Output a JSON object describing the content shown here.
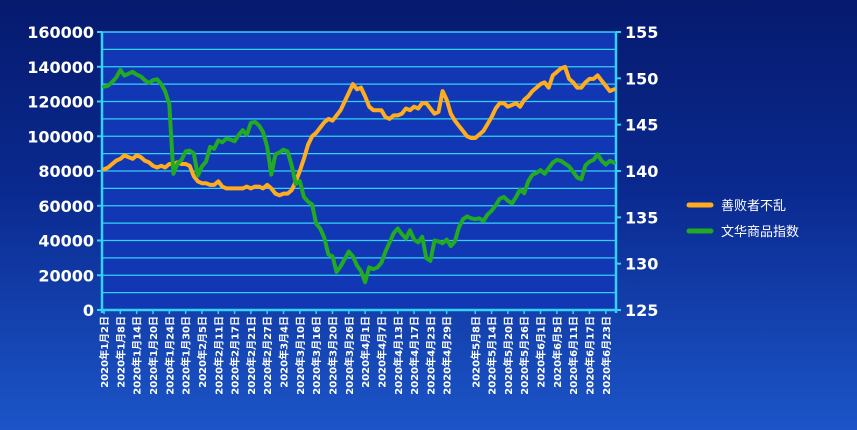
{
  "chart_data": {
    "type": "line",
    "title": "",
    "xlabel": "",
    "ylabel_left": "",
    "ylabel_right": "",
    "y_left": {
      "range": [
        0,
        160000
      ],
      "ticks": [
        0,
        20000,
        40000,
        60000,
        80000,
        100000,
        120000,
        140000,
        160000
      ]
    },
    "y_right": {
      "range": [
        125,
        155
      ],
      "ticks": [
        125,
        130,
        135,
        140,
        145,
        150,
        155
      ]
    },
    "grid": true,
    "legend_position": "right",
    "x": [
      "2020年1月2日",
      "2020年1月3日",
      "2020年1月6日",
      "2020年1月7日",
      "2020年1月8日",
      "2020年1月9日",
      "2020年1月10日",
      "2020年1月13日",
      "2020年1月14日",
      "2020年1月15日",
      "2020年1月16日",
      "2020年1月17日",
      "2020年1月20日",
      "2020年1月21日",
      "2020年1月22日",
      "2020年1月23日",
      "2020年1月24日",
      "2020年1月27日",
      "2020年1月28日",
      "2020年1月29日",
      "2020年1月30日",
      "2020年1月31日",
      "2020年2月3日",
      "2020年2月4日",
      "2020年2月5日",
      "2020年2月6日",
      "2020年2月7日",
      "2020年2月10日",
      "2020年2月11日",
      "2020年2月12日",
      "2020年2月13日",
      "2020年2月14日",
      "2020年2月17日",
      "2020年2月18日",
      "2020年2月19日",
      "2020年2月20日",
      "2020年2月21日",
      "2020年2月24日",
      "2020年2月25日",
      "2020年2月26日",
      "2020年2月27日",
      "2020年2月28日",
      "2020年3月2日",
      "2020年3月3日",
      "2020年3月4日",
      "2020年3月5日",
      "2020年3月6日",
      "2020年3月9日",
      "2020年3月10日",
      "2020年3月11日",
      "2020年3月12日",
      "2020年3月13日",
      "2020年3月16日",
      "2020年3月17日",
      "2020年3月18日",
      "2020年3月19日",
      "2020年3月20日",
      "2020年3月23日",
      "2020年3月24日",
      "2020年3月25日",
      "2020年3月26日",
      "2020年3月27日",
      "2020年3月30日",
      "2020年3月31日",
      "2020年4月1日",
      "2020年4月2日",
      "2020年4月3日",
      "2020年4月6日",
      "2020年4月7日",
      "2020年4月8日",
      "2020年4月9日",
      "2020年4月10日",
      "2020年4月13日",
      "2020年4月14日",
      "2020年4月15日",
      "2020年4月16日",
      "2020年4月17日",
      "2020年4月20日",
      "2020年4月21日",
      "2020年4月22日",
      "2020年4月23日",
      "2020年4月24日",
      "2020年4月27日",
      "2020年4月28日",
      "2020年4月29日",
      "2020年4月30日",
      "2020年5月1日",
      "2020年5月4日",
      "2020年5月5日",
      "2020年5月6日",
      "2020年5月7日",
      "2020年5月8日",
      "2020年5月11日",
      "2020年5月12日",
      "2020年5月13日",
      "2020年5月14日",
      "2020年5月15日",
      "2020年5月18日",
      "2020年5月19日",
      "2020年5月20日",
      "2020年5月21日",
      "2020年5月22日",
      "2020年5月25日",
      "2020年5月26日",
      "2020年5月27日",
      "2020年5月28日",
      "2020年5月29日",
      "2020年6月1日",
      "2020年6月2日",
      "2020年6月3日",
      "2020年6月4日",
      "2020年6月5日",
      "2020年6月8日",
      "2020年6月9日",
      "2020年6月10日",
      "2020年6月11日",
      "2020年6月12日",
      "2020年6月15日",
      "2020年6月16日",
      "2020年6月17日",
      "2020年6月18日",
      "2020年6月19日",
      "2020年6月22日",
      "2020年6月23日",
      "2020年6月24日",
      "2020年6月29日"
    ],
    "x_tick_labels": [
      "2020年1月2日",
      "2020年1月8日",
      "2020年1月14日",
      "2020年1月20日",
      "2020年1月24日",
      "2020年1月30日",
      "2020年2月5日",
      "2020年2月11日",
      "2020年2月17日",
      "2020年2月21日",
      "2020年2月27日",
      "2020年3月4日",
      "2020年3月10日",
      "2020年3月16日",
      "2020年3月20日",
      "2020年3月26日",
      "2020年4月1日",
      "2020年4月7日",
      "2020年4月13日",
      "2020年4月17日",
      "2020年4月23日",
      "2020年4月29日",
      "2020年5月8日",
      "2020年5月14日",
      "2020年5月20日",
      "2020年5月26日",
      "2020年6月1日",
      "2020年6月5日",
      "2020年6月11日",
      "2020年6月17日",
      "2020年6月23日"
    ],
    "series": [
      {
        "name": "善败者不乱",
        "axis": "left",
        "color": "#ffad1f",
        "values": [
          81000,
          82000,
          84000,
          86000,
          87000,
          89000,
          88000,
          87000,
          89000,
          88000,
          86000,
          85000,
          83000,
          82000,
          83000,
          82000,
          84000,
          84000,
          85000,
          84000,
          84000,
          83000,
          77000,
          74000,
          73000,
          73000,
          72000,
          72000,
          74000,
          71000,
          70000,
          70000,
          70000,
          70000,
          70000,
          71000,
          70000,
          71000,
          71000,
          70000,
          72000,
          70000,
          67000,
          66000,
          67000,
          67000,
          69000,
          74000,
          80000,
          87000,
          95000,
          100000,
          102000,
          105000,
          108000,
          110000,
          109000,
          112000,
          115000,
          120000,
          125000,
          130000,
          127000,
          128000,
          123000,
          117000,
          115000,
          115000,
          115000,
          111000,
          110000,
          112000,
          112000,
          113000,
          116000,
          115000,
          117000,
          116000,
          119000,
          119000,
          116000,
          113000,
          114000,
          126000,
          121000,
          113000,
          109000,
          106000,
          103000,
          100000,
          99000,
          99000,
          101000,
          103000,
          107000,
          111000,
          116000,
          119000,
          119000,
          117000,
          118000,
          119000,
          117000,
          121000,
          123000,
          126000,
          128000,
          130000,
          131000,
          128000,
          135000,
          137000,
          139000,
          140000,
          133000,
          131000,
          128000,
          128000,
          131000,
          133000,
          133000,
          135000,
          132000,
          129000,
          126000,
          127000
        ]
      },
      {
        "name": "文华商品指数",
        "axis": "right",
        "color": "#22aa22",
        "values": [
          149.1,
          149.2,
          149.6,
          150.1,
          150.9,
          150.3,
          150.5,
          150.7,
          150.4,
          150.2,
          149.8,
          149.5,
          149.8,
          149.9,
          149.4,
          148.6,
          147.2,
          139.7,
          140.8,
          141.2,
          142.1,
          142.2,
          141.9,
          139.5,
          140.5,
          141.0,
          142.6,
          142.4,
          143.3,
          143.1,
          143.5,
          143.4,
          143.2,
          143.9,
          144.4,
          143.9,
          145.2,
          145.3,
          144.9,
          144.2,
          142.6,
          139.6,
          141.8,
          142.0,
          142.3,
          142.1,
          140.6,
          138.6,
          138.9,
          137.2,
          136.7,
          136.4,
          134.3,
          133.8,
          132.8,
          131.0,
          130.8,
          129.1,
          129.7,
          130.5,
          131.3,
          130.8,
          129.8,
          129.2,
          128.0,
          129.6,
          129.4,
          129.6,
          130.1,
          131.3,
          132.3,
          133.3,
          133.8,
          133.2,
          132.7,
          133.6,
          132.6,
          132.3,
          132.9,
          130.6,
          130.3,
          132.5,
          132.4,
          132.2,
          132.6,
          131.9,
          132.4,
          133.9,
          134.8,
          135.1,
          134.9,
          134.8,
          134.9,
          134.6,
          135.3,
          135.7,
          136.3,
          137.0,
          137.2,
          136.8,
          136.5,
          137.2,
          138.0,
          137.6,
          138.9,
          139.6,
          139.8,
          140.1,
          139.7,
          140.3,
          140.9,
          141.2,
          141.1,
          140.8,
          140.5,
          139.9,
          139.3,
          139.1,
          140.6,
          141.0,
          141.2,
          141.8,
          141.1,
          140.7,
          141.1,
          140.9
        ]
      }
    ]
  }
}
